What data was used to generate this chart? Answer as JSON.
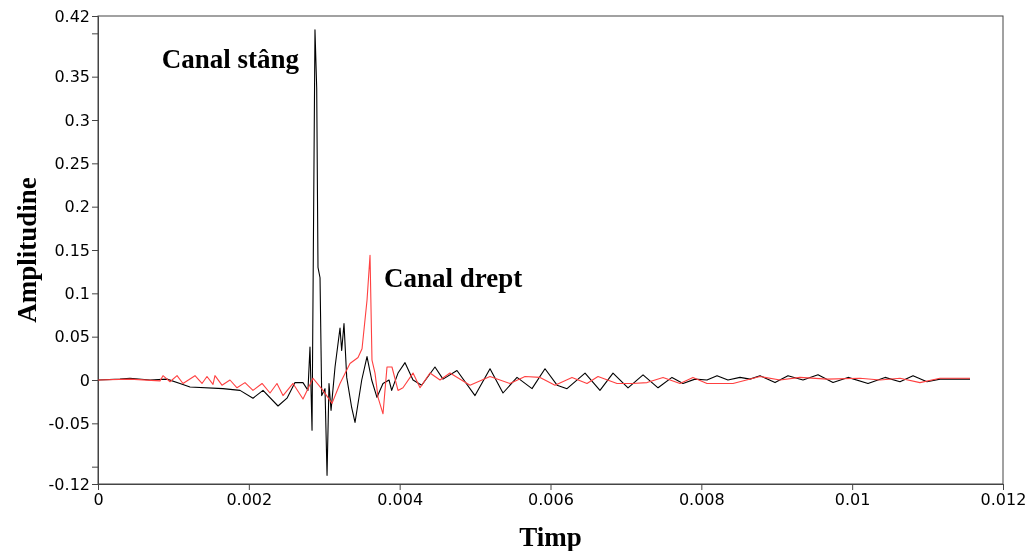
{
  "chart_data": {
    "type": "line",
    "xlabel": "Timp",
    "ylabel": "Amplitudine",
    "xlim": [
      0,
      0.012
    ],
    "xticks": [
      0,
      0.002,
      0.004,
      0.006,
      0.008,
      0.01,
      0.012
    ],
    "ylim": [
      -0.12,
      0.42
    ],
    "yticks": [
      -0.12,
      {
        "value": -0.1,
        "label": null
      },
      -0.05,
      0,
      0.05,
      0.1,
      0.15,
      0.2,
      0.25,
      0.3,
      0.35,
      {
        "value": 0.4,
        "label": null
      },
      0.42
    ],
    "grid": false,
    "legend": false,
    "marker": "none",
    "line_style": "solid",
    "series": [
      {
        "name": "Canal stâng",
        "color": "#000000",
        "x": [
          0,
          0.000292,
          0.000424,
          0.00069,
          0.000915,
          0.001087,
          0.00122,
          0.001657,
          0.001883,
          0.002055,
          0.002188,
          0.002387,
          0.002506,
          0.002612,
          0.002718,
          0.002784,
          0.002811,
          0.002838,
          0.002877,
          0.0029,
          0.002917,
          0.002944,
          0.002966,
          0.00301,
          0.003037,
          0.003063,
          0.00309,
          0.003143,
          0.003209,
          0.003231,
          0.003262,
          0.003298,
          0.003364,
          0.003408,
          0.003497,
          0.003567,
          0.003629,
          0.003699,
          0.003779,
          0.003859,
          0.003894,
          0.003978,
          0.004071,
          0.004177,
          0.004292,
          0.004468,
          0.004575,
          0.00476,
          0.004999,
          0.005198,
          0.00537,
          0.005556,
          0.005755,
          0.005927,
          0.006087,
          0.006219,
          0.006458,
          0.006656,
          0.006829,
          0.007028,
          0.007227,
          0.007426,
          0.007611,
          0.007757,
          0.007916,
          0.008075,
          0.008208,
          0.008353,
          0.008513,
          0.008645,
          0.008778,
          0.008977,
          0.009149,
          0.009348,
          0.009547,
          0.009746,
          0.009945,
          0.01021,
          0.010436,
          0.010634,
          0.010807,
          0.010992,
          0.011165,
          0.011563
        ],
        "values": [
          0,
          0.001,
          0.002,
          0,
          0.001,
          -0.004,
          -0.008,
          -0.01,
          -0.012,
          -0.021,
          -0.012,
          -0.03,
          -0.021,
          -0.003,
          -0.003,
          -0.012,
          0.038,
          -0.058,
          0.404,
          0.337,
          0.13,
          0.118,
          -0.018,
          -0.01,
          -0.11,
          -0.004,
          -0.035,
          0.015,
          0.06,
          0.034,
          0.065,
          0.003,
          -0.032,
          -0.049,
          0,
          0.027,
          0,
          -0.02,
          -0.004,
          0,
          -0.012,
          0.008,
          0.02,
          0,
          -0.006,
          0.015,
          0.001,
          0.011,
          -0.018,
          0.013,
          -0.015,
          0.003,
          -0.01,
          0.013,
          -0.006,
          -0.01,
          0.008,
          -0.012,
          0.008,
          -0.009,
          0.006,
          -0.009,
          0.003,
          -0.004,
          0.001,
          0,
          0.005,
          0,
          0.003,
          0.001,
          0.005,
          -0.003,
          0.005,
          0,
          0.006,
          -0.003,
          0.003,
          -0.004,
          0.003,
          -0.002,
          0.005,
          -0.002,
          0.001,
          0.001
        ]
      },
      {
        "name": "Canal drept",
        "color": "#ff4040",
        "x": [
          0,
          0.000424,
          0.000822,
          0.000862,
          0.000955,
          0.001048,
          0.001127,
          0.001286,
          0.001379,
          0.001445,
          0.001525,
          0.001551,
          0.001644,
          0.00175,
          0.001843,
          0.001949,
          0.002055,
          0.002175,
          0.002281,
          0.002373,
          0.002453,
          0.002586,
          0.002718,
          0.002851,
          0.002983,
          0.003103,
          0.003209,
          0.003341,
          0.003448,
          0.003501,
          0.003567,
          0.003607,
          0.003633,
          0.003673,
          0.003713,
          0.003779,
          0.003832,
          0.003898,
          0.003978,
          0.004044,
          0.004177,
          0.00427,
          0.004402,
          0.004535,
          0.004667,
          0.004933,
          0.005198,
          0.005463,
          0.005662,
          0.005861,
          0.00606,
          0.006285,
          0.006484,
          0.00663,
          0.006882,
          0.007081,
          0.00728,
          0.007492,
          0.007717,
          0.007889,
          0.008075,
          0.00842,
          0.008778,
          0.009043,
          0.009308,
          0.009666,
          0.010104,
          0.010369,
          0.010634,
          0.010899,
          0.011165,
          0.011563
        ],
        "values": [
          0,
          0.001,
          -0.001,
          0.005,
          -0.002,
          0.005,
          -0.004,
          0.005,
          -0.004,
          0.004,
          -0.005,
          0.005,
          -0.006,
          0,
          -0.009,
          -0.003,
          -0.012,
          -0.004,
          -0.015,
          -0.004,
          -0.018,
          -0.004,
          -0.022,
          0.002,
          -0.012,
          -0.027,
          -0.004,
          0.019,
          0.026,
          0.036,
          0.092,
          0.144,
          0.023,
          0.008,
          -0.02,
          -0.039,
          0.015,
          0.015,
          -0.012,
          -0.009,
          0.008,
          -0.009,
          0.008,
          0,
          0.008,
          -0.006,
          0.004,
          -0.004,
          0.004,
          0.003,
          -0.006,
          0.003,
          -0.004,
          0.004,
          -0.004,
          -0.004,
          -0.003,
          0.003,
          -0.004,
          0.003,
          -0.004,
          -0.004,
          0.004,
          0,
          0.003,
          0.001,
          0.002,
          0,
          0.002,
          -0.003,
          0.002,
          0.002
        ]
      }
    ]
  }
}
